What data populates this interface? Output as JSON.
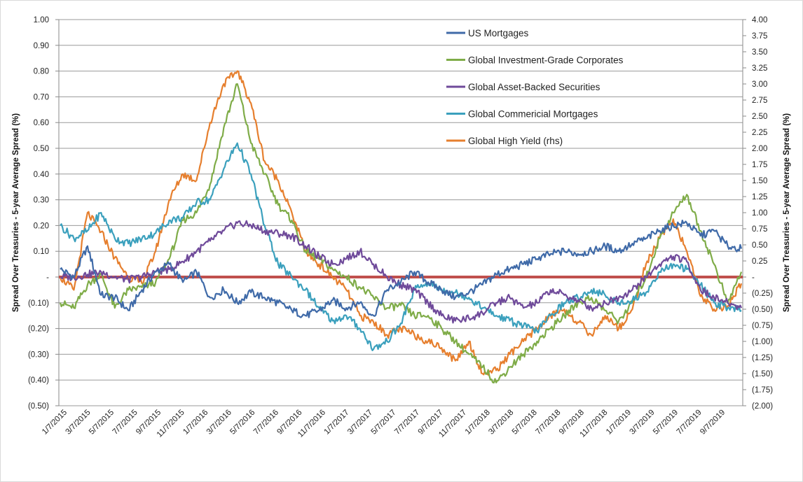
{
  "chart_data": {
    "type": "line",
    "title": "",
    "xlabel": "",
    "ylabel": "Spread Over Treasuries  - 5-year Average Spread (%)",
    "ylabel_right": "Spread Over Treasuries  - 5-year Average Spread (%)",
    "ylim": [
      -0.5,
      1.0
    ],
    "ylim_right": [
      -2.0,
      4.0
    ],
    "grid": true,
    "legend_position": "top-center",
    "y_tick_labels": [
      "1.00",
      "0.90",
      "0.80",
      "0.70",
      "0.60",
      "0.50",
      "0.40",
      "0.30",
      "0.20",
      "0.10",
      "-",
      "(0.10)",
      "(0.20)",
      "(0.30)",
      "(0.40)",
      "(0.50)"
    ],
    "y2_tick_labels": [
      "4.00",
      "3.75",
      "3.50",
      "3.25",
      "3.00",
      "2.75",
      "2.50",
      "2.25",
      "2.00",
      "1.75",
      "1.50",
      "1.25",
      "1.00",
      "0.75",
      "0.50",
      "0.25",
      "-",
      "(0.25)",
      "(0.50)",
      "(0.75)",
      "(1.00)",
      "(1.25)",
      "(1.50)",
      "(1.75)",
      "(2.00)"
    ],
    "x_tick_labels": [
      "1/7/2015",
      "3/7/2015",
      "5/7/2015",
      "7/7/2015",
      "9/7/2015",
      "11/7/2015",
      "1/7/2016",
      "3/7/2016",
      "5/7/2016",
      "7/7/2016",
      "9/7/2016",
      "11/7/2016",
      "1/7/2017",
      "3/7/2017",
      "5/7/2017",
      "7/7/2017",
      "9/7/2017",
      "11/7/2017",
      "1/7/2018",
      "3/7/2018",
      "5/7/2018",
      "7/7/2018",
      "9/7/2018",
      "11/7/2018",
      "1/7/2019",
      "3/7/2019",
      "5/7/2019",
      "7/7/2019",
      "9/7/2019"
    ],
    "reference_line": {
      "value": 0,
      "color": "#c0504d"
    },
    "series": [
      {
        "name": "US Mortgages",
        "color": "#3f6aa8",
        "axis": "left",
        "values": [
          0.03,
          0.0,
          0.12,
          -0.07,
          -0.08,
          -0.13,
          -0.05,
          0.02,
          0.05,
          -0.02,
          0.02,
          -0.08,
          -0.05,
          -0.1,
          -0.06,
          -0.08,
          -0.1,
          -0.13,
          -0.15,
          -0.13,
          -0.09,
          -0.12,
          -0.1,
          -0.15,
          -0.05,
          -0.02,
          0.02,
          -0.02,
          -0.05,
          -0.08,
          -0.06,
          -0.03,
          0.01,
          0.03,
          0.05,
          0.07,
          0.09,
          0.1,
          0.09,
          0.1,
          0.12,
          0.1,
          0.13,
          0.15,
          0.18,
          0.2,
          0.21,
          0.16,
          0.18,
          0.12,
          0.11
        ]
      },
      {
        "name": "Global Investment-Grade Corporates",
        "color": "#7fac48",
        "axis": "left",
        "values": [
          -0.1,
          -0.12,
          -0.03,
          0.01,
          -0.12,
          -0.05,
          -0.04,
          -0.02,
          0.07,
          0.22,
          0.25,
          0.36,
          0.58,
          0.75,
          0.52,
          0.4,
          0.28,
          0.22,
          0.1,
          0.07,
          0.03,
          0.0,
          -0.04,
          -0.08,
          -0.12,
          -0.11,
          -0.15,
          -0.15,
          -0.2,
          -0.25,
          -0.3,
          -0.35,
          -0.41,
          -0.35,
          -0.3,
          -0.25,
          -0.2,
          -0.15,
          -0.1,
          -0.08,
          -0.13,
          -0.17,
          -0.1,
          0.0,
          0.15,
          0.25,
          0.32,
          0.18,
          0.05,
          -0.1,
          0.02
        ]
      },
      {
        "name": "Global Asset-Backed Securities",
        "color": "#6f4a9a",
        "axis": "left",
        "values": [
          0.0,
          0.0,
          0.01,
          0.02,
          0.0,
          -0.01,
          0.0,
          0.02,
          0.03,
          0.06,
          0.1,
          0.14,
          0.18,
          0.21,
          0.2,
          0.18,
          0.17,
          0.16,
          0.12,
          0.08,
          0.05,
          0.07,
          0.1,
          0.05,
          0.0,
          -0.03,
          -0.05,
          -0.1,
          -0.15,
          -0.17,
          -0.16,
          -0.14,
          -0.1,
          -0.08,
          -0.12,
          -0.1,
          -0.05,
          -0.07,
          -0.09,
          -0.12,
          -0.1,
          -0.08,
          -0.05,
          0.0,
          0.05,
          0.08,
          0.06,
          -0.05,
          -0.08,
          -0.1,
          -0.12
        ]
      },
      {
        "name": "Global Commericial Mortgages",
        "color": "#3ba0bd",
        "axis": "left",
        "values": [
          0.2,
          0.15,
          0.18,
          0.25,
          0.15,
          0.13,
          0.15,
          0.17,
          0.22,
          0.23,
          0.29,
          0.3,
          0.42,
          0.52,
          0.4,
          0.2,
          0.05,
          0.0,
          -0.05,
          -0.12,
          -0.17,
          -0.15,
          -0.2,
          -0.28,
          -0.25,
          -0.18,
          -0.05,
          -0.02,
          -0.05,
          -0.06,
          -0.08,
          -0.12,
          -0.15,
          -0.17,
          -0.19,
          -0.21,
          -0.15,
          -0.1,
          -0.08,
          -0.05,
          -0.07,
          -0.1,
          -0.09,
          -0.06,
          0.02,
          0.05,
          0.03,
          -0.03,
          -0.1,
          -0.12,
          -0.13
        ]
      },
      {
        "name": "Global High Yield (rhs)",
        "color": "#e67f2e",
        "axis": "right",
        "values": [
          0.0,
          -0.2,
          1.0,
          0.7,
          0.3,
          0.0,
          -0.1,
          0.4,
          1.2,
          1.6,
          1.5,
          2.4,
          3.0,
          3.2,
          2.7,
          1.8,
          1.5,
          1.0,
          0.4,
          0.2,
          0.0,
          -0.2,
          -0.6,
          -0.7,
          -0.9,
          -0.8,
          -0.9,
          -1.0,
          -1.1,
          -1.3,
          -1.0,
          -1.5,
          -1.45,
          -1.2,
          -1.0,
          -0.8,
          -0.6,
          -0.5,
          -0.7,
          -0.9,
          -0.6,
          -0.8,
          -0.5,
          0.2,
          0.6,
          0.9,
          0.4,
          -0.3,
          -0.5,
          -0.45,
          -0.1
        ]
      }
    ]
  }
}
